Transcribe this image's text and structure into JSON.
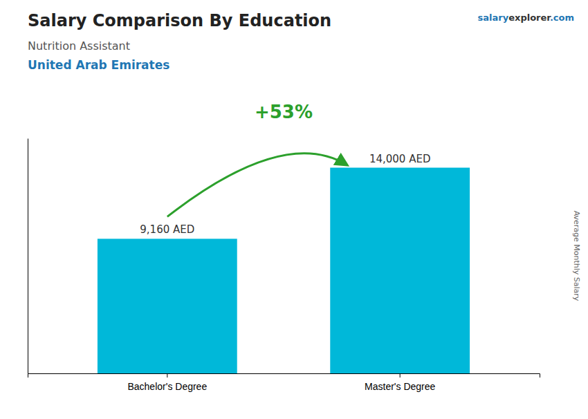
{
  "chart_data": {
    "type": "bar",
    "title": "Salary Comparison By Education",
    "subtitle": "Nutrition Assistant",
    "ylabel": "Average Monthly Salary",
    "annotations": [
      "United Arab Emirates",
      "salary",
      "explorer",
      ".com",
      "+53%"
    ],
    "categories": [
      "Bachelor's Degree",
      "Master's Degree"
    ],
    "values": [
      9160,
      14000
    ],
    "value_labels": [
      "9,160 AED",
      "14,000 AED"
    ],
    "data_labels": true,
    "color": "#00b8d9",
    "ylim": [
      0,
      16000
    ],
    "tick_labels": "x"
  }
}
